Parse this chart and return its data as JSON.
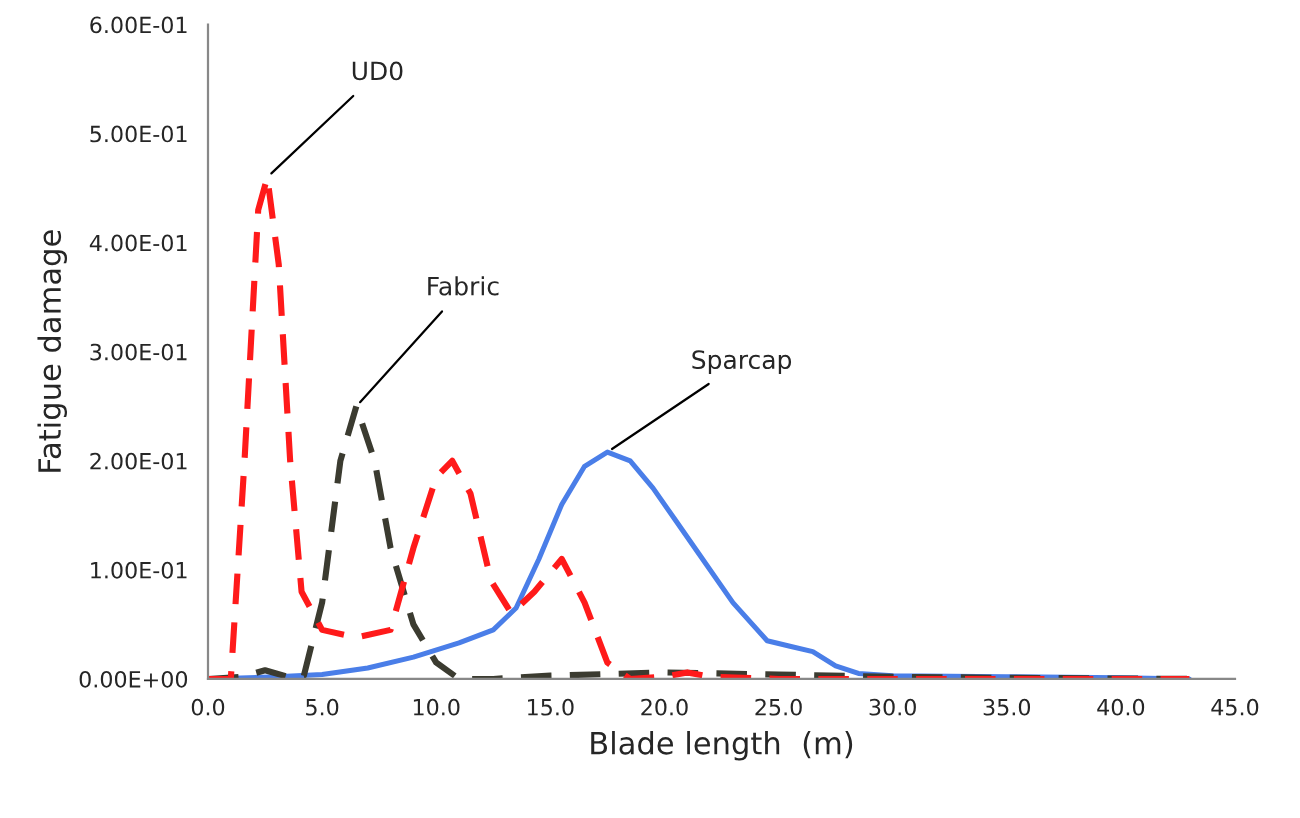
{
  "chart_data": {
    "type": "line",
    "xlabel": "Blade length  (m)",
    "ylabel": "Fatigue damage",
    "xlim": [
      0,
      45
    ],
    "ylim": [
      0,
      0.6
    ],
    "xticks": [
      {
        "value": 0,
        "label": "0.0"
      },
      {
        "value": 5,
        "label": "5.0"
      },
      {
        "value": 10,
        "label": "10.0"
      },
      {
        "value": 15,
        "label": "15.0"
      },
      {
        "value": 20,
        "label": "20.0"
      },
      {
        "value": 25,
        "label": "25.0"
      },
      {
        "value": 30,
        "label": "30.0"
      },
      {
        "value": 35,
        "label": "35.0"
      },
      {
        "value": 40,
        "label": "40.0"
      },
      {
        "value": 45,
        "label": "45.0"
      }
    ],
    "yticks": [
      {
        "value": 0,
        "label": "0.00E+00"
      },
      {
        "value": 0.1,
        "label": "1.00E-01"
      },
      {
        "value": 0.2,
        "label": "2.00E-01"
      },
      {
        "value": 0.3,
        "label": "3.00E-01"
      },
      {
        "value": 0.4,
        "label": "4.00E-01"
      },
      {
        "value": 0.5,
        "label": "5.00E-01"
      },
      {
        "value": 0.6,
        "label": "6.00E-01"
      }
    ],
    "grid": false,
    "legend": false,
    "marker": "none",
    "series": [
      {
        "color": "#4a7ee8",
        "line_style": "solid",
        "x": [
          0,
          3,
          5,
          7,
          9,
          11,
          12.5,
          13.5,
          14.5,
          15.5,
          16.5,
          17.5,
          18.5,
          19.5,
          20.5,
          21.5,
          23,
          24.5,
          25.5,
          26.5,
          27.5,
          28.5,
          30,
          35,
          40,
          43
        ],
        "values": [
          0,
          0.002,
          0.004,
          0.01,
          0.02,
          0.033,
          0.045,
          0.065,
          0.11,
          0.16,
          0.195,
          0.208,
          0.2,
          0.175,
          0.145,
          0.115,
          0.07,
          0.035,
          0.03,
          0.025,
          0.012,
          0.005,
          0.003,
          0.002,
          0.001,
          0
        ]
      },
      {
        "color": "#3b3b30",
        "line_style": "dashed",
        "x": [
          0,
          1.5,
          2.5,
          3.5,
          4.2,
          5,
          5.8,
          6.5,
          7.3,
          8,
          9,
          10,
          11,
          12.5,
          15,
          20,
          25,
          30,
          35,
          43
        ],
        "values": [
          0,
          0.002,
          0.008,
          0.002,
          0.003,
          0.07,
          0.2,
          0.25,
          0.2,
          0.12,
          0.05,
          0.015,
          0,
          0,
          0.003,
          0.006,
          0.004,
          0.002,
          0.001,
          0
        ]
      },
      {
        "color": "#ff1a1a",
        "line_style": "dashed",
        "x": [
          0,
          1,
          1.6,
          2.2,
          2.6,
          3.1,
          3.6,
          4.1,
          5,
          6.5,
          8,
          9,
          10,
          10.7,
          11.5,
          12.4,
          13.3,
          14.3,
          15.5,
          16.5,
          17.5,
          18.5,
          20,
          21,
          22,
          25,
          30,
          35,
          43
        ],
        "values": [
          0,
          0,
          0.2,
          0.43,
          0.46,
          0.38,
          0.2,
          0.08,
          0.045,
          0.038,
          0.045,
          0.12,
          0.185,
          0.2,
          0.17,
          0.09,
          0.06,
          0.08,
          0.11,
          0.07,
          0.015,
          0,
          0.002,
          0.006,
          0.002,
          0,
          0,
          0,
          0
        ]
      }
    ],
    "annotations": [
      {
        "text": "UD0",
        "x": 2.6,
        "y": 0.46
      },
      {
        "text": "Fabric",
        "x": 6.5,
        "y": 0.25
      },
      {
        "text": "Sparcap",
        "x": 17.5,
        "y": 0.208
      }
    ]
  }
}
